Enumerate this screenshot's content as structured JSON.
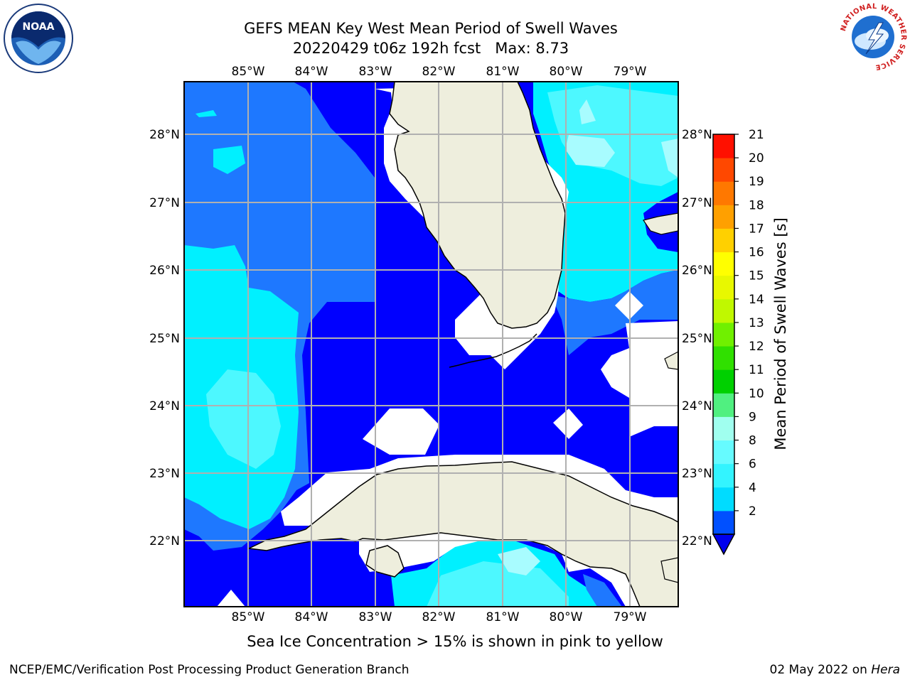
{
  "title": {
    "line1": "GEFS MEAN Key West Mean Period of Swell Waves",
    "line2": "20220429 t06z 192h fcst   Max: 8.73"
  },
  "map": {
    "lon_labels": [
      "85°W",
      "84°W",
      "83°W",
      "82°W",
      "81°W",
      "80°W",
      "79°W"
    ],
    "lat_labels": [
      "28°N",
      "27°N",
      "26°N",
      "25°N",
      "24°N",
      "23°N",
      "22°N"
    ],
    "colors": {
      "land": "#eeeedd",
      "coast": "#000000",
      "grid": "#b0b0b0",
      "band_2_4": "#0000ff",
      "band_4_6": "#1e78ff",
      "band_6_8": "#00f0ff",
      "band_8_9": "#4df8ff",
      "band_9_10": "#a8fcff",
      "nodata": "#ffffff"
    }
  },
  "colorbar": {
    "label": "Mean Period of Swell Waves [s]",
    "ticks": [
      "21",
      "20",
      "19",
      "18",
      "17",
      "16",
      "15",
      "14",
      "13",
      "12",
      "11",
      "10",
      "9",
      "8",
      "6",
      "4",
      "2"
    ],
    "levels": [
      2,
      4,
      6,
      8,
      9,
      10,
      11,
      12,
      13,
      14,
      15,
      16,
      17,
      18,
      19,
      20,
      21
    ],
    "colors": [
      "#0050ff",
      "#00dcff",
      "#33f4ff",
      "#66fbff",
      "#a0ffef",
      "#50f080",
      "#00d000",
      "#30e000",
      "#70f000",
      "#c0f800",
      "#e8f800",
      "#ffff00",
      "#ffd000",
      "#ffa000",
      "#ff7800",
      "#ff4800",
      "#ff1000"
    ],
    "under_color": "#0000ee"
  },
  "note": "Sea Ice Concentration > 15% is shown in pink to yellow",
  "footer": {
    "left": "NCEP/EMC/Verification Post Processing Product Generation Branch",
    "right_date": "02 May 2022 on ",
    "right_machine": "Hera"
  },
  "logos": {
    "noaa_text": "NOAA",
    "nws_ring_text": "NATIONAL WEATHER SERVICE"
  }
}
